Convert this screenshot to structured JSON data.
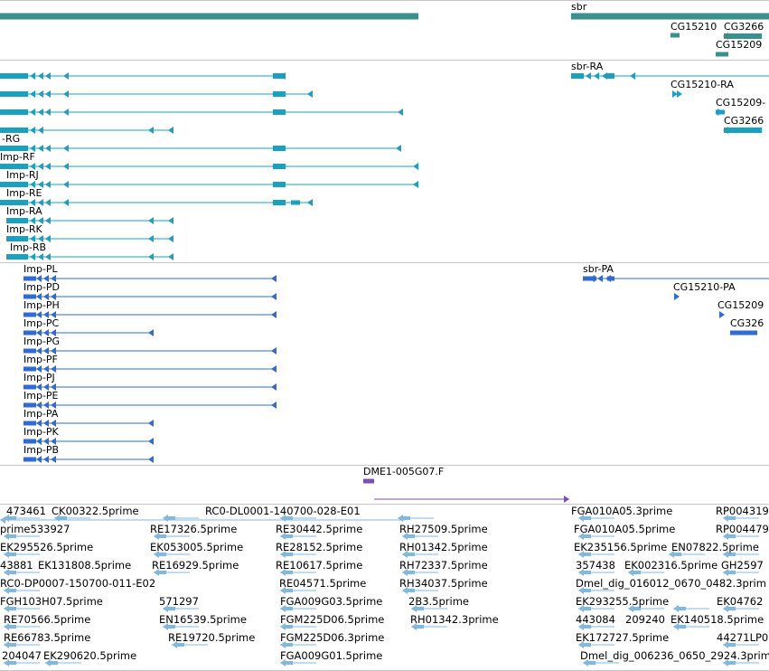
{
  "gene_track": {
    "labels": [
      "sbr",
      "CG15210",
      "CG3266",
      "CG15209"
    ]
  },
  "transcript_track": {
    "labels": [
      "sbr-RA",
      "CG15210-RA",
      "CG15209-",
      "CG3266",
      "-RG",
      "Imp-RF",
      "Imp-RJ",
      "Imp-RE",
      "Imp-RA",
      "Imp-RK",
      "Imp-RB"
    ]
  },
  "protein_track": {
    "labels": [
      "Imp-PL",
      "Imp-PD",
      "Imp-PH",
      "Imp-PC",
      "Imp-PG",
      "Imp-PF",
      "Imp-PJ",
      "Imp-PE",
      "Imp-PA",
      "Imp-PK",
      "Imp-PB",
      "sbr-PA",
      "CG15210-PA",
      "CG15209",
      "CG326"
    ]
  },
  "clone_track": {
    "labels": [
      "DME1-005G07.F"
    ]
  },
  "est_track": {
    "labels": [
      "473461",
      "CK00322.5prime",
      "RC0-DL0001-140700-028-E01",
      "FGA010A05.3prime",
      "RP004319",
      "prime533927",
      "RE17326.5prime",
      "RE30442.5prime",
      "RH27509.5prime",
      "FGA010A05.5prime",
      "RP004479",
      "EK295526.5prime",
      "EK053005.5prime",
      "RE28152.5prime",
      "RH01342.5prime",
      "EK235156.5prime",
      "EN07822.5prime",
      "43881",
      "EK131808.5prime",
      "RE16929.5prime",
      "RE10617.5prime",
      "RH72337.5prime",
      "357438",
      "EK002316.5prime",
      "GH2597",
      "RC0-DP0007-150700-011-E02",
      "RE04571.5prime",
      "RH34037.5prime",
      "Dmel_dig_016012_0670_0482.3prim",
      "FGH103H07.5prime",
      "571297",
      "FGA009G03.5prime",
      "2B3.5prime",
      "EK293255.5prime",
      "EK04762",
      "RE70566.5prime",
      "EN16539.5prime",
      "FGM225D06.5prime",
      "RH01342.3prime",
      "443084",
      "209240",
      "EK140518.5prime",
      "RE66783.5prime",
      "RE19720.5prime",
      "FGM225D06.3prime",
      "EK172727.5prime",
      "44271LP0",
      "204047",
      "EK290620.5prime",
      "FGA009G01.5prime",
      "Dmel_dig_006236_0650_2924.3prim"
    ]
  },
  "colors": {
    "gene": "#3a8f8f",
    "transcript": "#1aa0c0",
    "protein": "#2f6bd6",
    "clone": "#7c4fb0",
    "est": "#7fb9e0"
  }
}
